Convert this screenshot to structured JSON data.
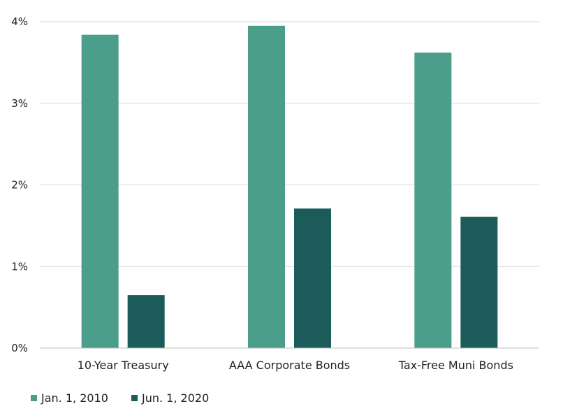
{
  "chart_data": {
    "type": "bar",
    "title": "",
    "xlabel": "",
    "ylabel": "",
    "categories": [
      "10-Year Treasury",
      "AAA Corporate Bonds",
      "Tax-Free Muni Bonds"
    ],
    "series": [
      {
        "name": "Jan. 1, 2010",
        "color": "#4a9e8a",
        "values": [
          3.84,
          3.95,
          3.62
        ]
      },
      {
        "name": "Jun. 1, 2020",
        "color": "#1b5c5a",
        "values": [
          0.65,
          1.71,
          1.61
        ]
      }
    ],
    "ylim": [
      0,
      4
    ],
    "yticks": [
      {
        "value": 0,
        "label": "0%"
      },
      {
        "value": 1,
        "label": "1%"
      },
      {
        "value": 2,
        "label": "2%"
      },
      {
        "value": 3,
        "label": "3%"
      },
      {
        "value": 4,
        "label": "4%"
      }
    ],
    "grid": true,
    "legend_position": "bottom-left"
  }
}
